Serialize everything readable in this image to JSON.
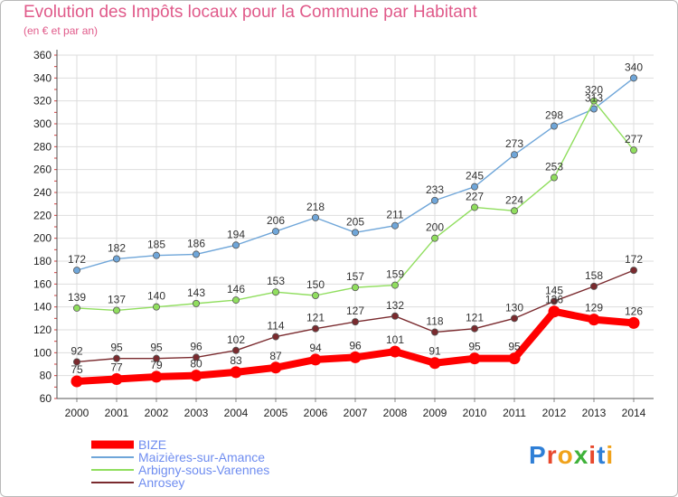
{
  "chart_data": {
    "type": "line",
    "title": "Evolution des Impôts locaux pour la Commune par Habitant",
    "subtitle": "(en € et par an)",
    "x": [
      "2000",
      "2001",
      "2002",
      "2003",
      "2004",
      "2005",
      "2006",
      "2007",
      "2008",
      "2009",
      "2010",
      "2011",
      "2012",
      "2013",
      "2014"
    ],
    "ylim": [
      60,
      360
    ],
    "yticks": [
      60,
      80,
      100,
      120,
      140,
      160,
      180,
      200,
      220,
      240,
      260,
      280,
      300,
      320,
      340,
      360
    ],
    "grid": true,
    "legend_position": "bottom-left",
    "series": [
      {
        "name": "BIZE",
        "color": "#ff0000",
        "values": [
          75,
          77,
          79,
          80,
          83,
          87,
          94,
          96,
          101,
          91,
          95,
          95,
          136,
          129,
          126
        ]
      },
      {
        "name": "Maizières-sur-Amance",
        "color": "#6fa6d9",
        "values": [
          172,
          182,
          185,
          186,
          194,
          206,
          218,
          205,
          211,
          233,
          245,
          273,
          298,
          313,
          340
        ]
      },
      {
        "name": "Arbigny-sous-Varennes",
        "color": "#90de5e",
        "values": [
          139,
          137,
          140,
          143,
          146,
          153,
          150,
          157,
          159,
          200,
          227,
          224,
          253,
          320,
          277
        ]
      },
      {
        "name": "Anrosey",
        "color": "#7a2a2e",
        "values": [
          92,
          95,
          95,
          96,
          102,
          114,
          121,
          127,
          132,
          118,
          121,
          130,
          145,
          158,
          172
        ]
      }
    ]
  },
  "brand": {
    "letters": [
      "P",
      "r",
      "o",
      "x",
      "i",
      "t",
      "i"
    ],
    "colors": [
      "#2f7fd6",
      "#e8482c",
      "#f0a21b",
      "#3fb23a",
      "#e8482c",
      "#2f7fd6",
      "#f0a21b"
    ]
  }
}
